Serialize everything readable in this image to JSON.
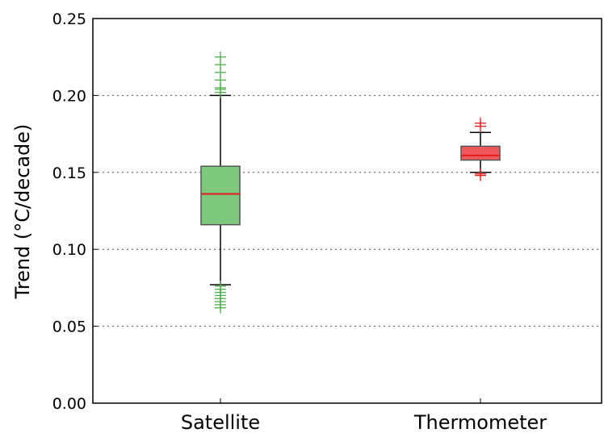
{
  "chart_data": {
    "type": "box",
    "ylabel": "Trend (°C/decade)",
    "ylim": [
      0.0,
      0.25
    ],
    "yticks": [
      "0.00",
      "0.05",
      "0.10",
      "0.15",
      "0.20",
      "0.25"
    ],
    "grid": "horizontal dotted",
    "categories": [
      "Satellite",
      "Thermometer"
    ],
    "boxes": [
      {
        "category": "Satellite",
        "color": "#7fc97f",
        "median_color": "#e41a1c",
        "outlier_color": "#4daf4a",
        "whisker_low": 0.077,
        "q1": 0.116,
        "median": 0.136,
        "q3": 0.154,
        "whisker_high": 0.2,
        "outliers": [
          0.062,
          0.064,
          0.066,
          0.068,
          0.07,
          0.072,
          0.074,
          0.076,
          0.202,
          0.204,
          0.205,
          0.21,
          0.215,
          0.22,
          0.225
        ]
      },
      {
        "category": "Thermometer",
        "color": "#f0595b",
        "median_color": "#e41a1c",
        "outlier_color": "#e41a1c",
        "whisker_low": 0.15,
        "q1": 0.158,
        "median": 0.161,
        "q3": 0.167,
        "whisker_high": 0.176,
        "outliers": [
          0.148,
          0.149,
          0.18,
          0.182
        ]
      }
    ]
  }
}
